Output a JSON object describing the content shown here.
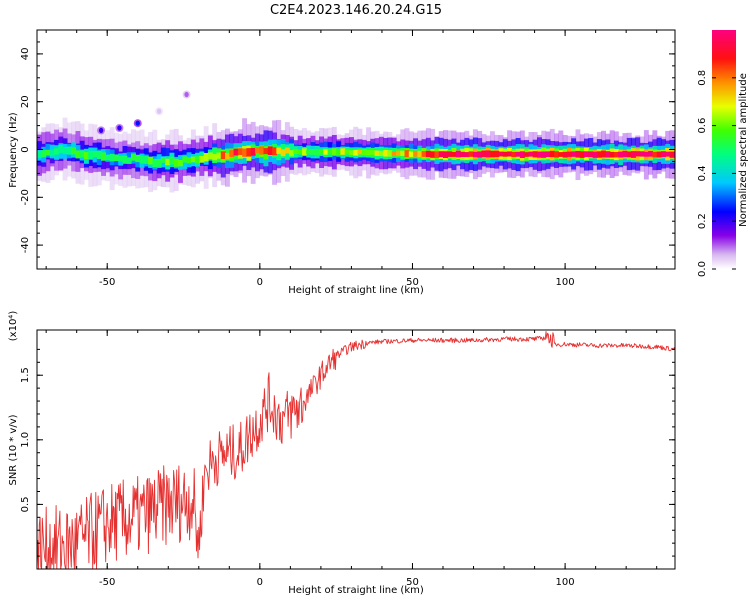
{
  "title": "C2E4.2023.146.20.24.G15",
  "colors": {
    "snr_line": "#e53030",
    "background": "#ffffff",
    "axis": "#000000"
  },
  "chart_data": [
    {
      "type": "heatmap",
      "xlabel": "Height of straight line (km)",
      "ylabel": "Frequency (Hz)",
      "xlim": [
        -73,
        136
      ],
      "ylim": [
        -50,
        50
      ],
      "xticks": [
        -50,
        0,
        50,
        100
      ],
      "xtick_labels": [
        "-50",
        "0",
        "50",
        "100"
      ],
      "yticks": [
        -40,
        -20,
        0,
        20,
        40
      ],
      "ytick_labels": [
        "-40",
        "-20",
        "0",
        "20",
        "40"
      ],
      "colorbar": {
        "label": "Normalized spectral amplitude",
        "range": [
          0,
          1
        ],
        "ticks": [
          0.0,
          0.2,
          0.4,
          0.6,
          0.8
        ],
        "tick_labels": [
          "0.0",
          "0.2",
          "0.4",
          "0.6",
          "0.8"
        ],
        "colormap": "rainbow (white-violet-blue-cyan-green-yellow-orange-red-magenta)"
      },
      "ridge": {
        "description": "peak frequency track of the signal along height",
        "x": [
          -73,
          -65,
          -58,
          -52,
          -47,
          -42,
          -37,
          -32,
          -27,
          -22,
          -17,
          -12,
          -8,
          -3,
          2,
          8,
          15,
          25,
          40,
          55,
          70,
          85,
          100,
          115,
          136
        ],
        "y": [
          -2,
          0,
          -2,
          -3,
          -4,
          -4,
          -5,
          -5,
          -5,
          -4,
          -3,
          -3,
          -1,
          -1,
          -1,
          -1,
          -1,
          -1,
          -1.5,
          -2,
          -2,
          -2,
          -2,
          -2,
          -2
        ],
        "peak_amplitude": [
          0.55,
          0.5,
          0.55,
          0.5,
          0.5,
          0.5,
          0.55,
          0.6,
          0.55,
          0.6,
          0.6,
          0.85,
          0.9,
          0.85,
          0.9,
          0.75,
          0.6,
          0.65,
          0.7,
          0.85,
          1.0,
          1.0,
          1.0,
          1.0,
          1.0
        ]
      },
      "blobs": [
        {
          "x": -52,
          "y": 8,
          "amplitude": 0.2
        },
        {
          "x": -46,
          "y": 9,
          "amplitude": 0.2
        },
        {
          "x": -40,
          "y": 11,
          "amplitude": 0.25
        },
        {
          "x": -33,
          "y": 16,
          "amplitude": 0.05
        },
        {
          "x": -24,
          "y": 23,
          "amplitude": 0.1
        }
      ]
    },
    {
      "type": "line",
      "xlabel": "Height of straight line (km)",
      "ylabel": "SNR (10 * v/v)",
      "y_scale_label": "(x10⁴)",
      "xlim": [
        -73,
        136
      ],
      "ylim": [
        0.0,
        1.85
      ],
      "xticks": [
        -50,
        0,
        50,
        100
      ],
      "xtick_labels": [
        "-50",
        "0",
        "50",
        "100"
      ],
      "yticks": [
        0.5,
        1.0,
        1.5
      ],
      "ytick_labels": [
        "0.5",
        "1.0",
        "1.5"
      ],
      "series": [
        {
          "name": "SNR",
          "x": [
            -73,
            -60,
            -50,
            -40,
            -30,
            -22,
            -20,
            -18,
            -15,
            -10,
            -7,
            -3,
            0,
            3,
            7,
            10,
            13,
            16,
            20,
            25,
            30,
            35,
            40,
            50,
            60,
            70,
            80,
            90,
            94,
            96,
            100,
            110,
            120,
            130,
            136
          ],
          "y": [
            0.15,
            0.2,
            0.35,
            0.4,
            0.5,
            0.55,
            0.2,
            0.75,
            0.85,
            0.9,
            0.9,
            1.05,
            1.15,
            1.3,
            1.15,
            1.2,
            1.25,
            1.35,
            1.5,
            1.65,
            1.72,
            1.75,
            1.76,
            1.77,
            1.77,
            1.77,
            1.78,
            1.78,
            1.79,
            1.74,
            1.74,
            1.73,
            1.73,
            1.72,
            1.7
          ]
        }
      ]
    }
  ]
}
